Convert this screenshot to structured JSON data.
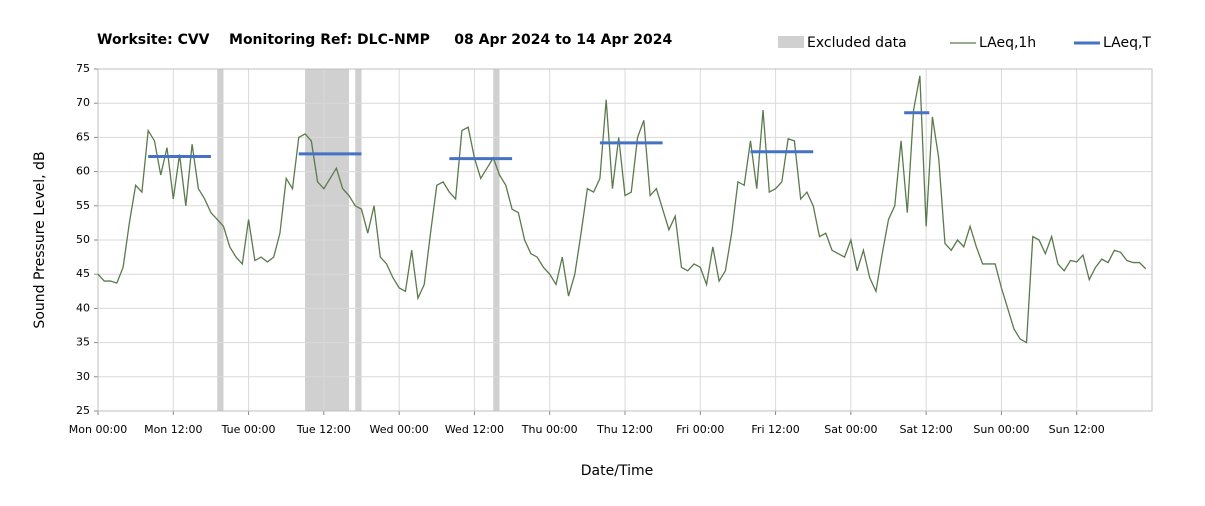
{
  "chart_data": {
    "type": "line",
    "title": "Worksite: CVV    Monitoring Ref: DLC-NMP     08 Apr 2024 to 14 Apr 2024",
    "y_label": "Sound Pressure Level, dB",
    "x_label": "Date/Time",
    "xlim": [
      0,
      168
    ],
    "xticks": [
      {
        "value": 0,
        "label": "Mon 00:00"
      },
      {
        "value": 12,
        "label": "Mon 12:00"
      },
      {
        "value": 24,
        "label": "Tue 00:00"
      },
      {
        "value": 36,
        "label": "Tue 12:00"
      },
      {
        "value": 48,
        "label": "Wed 00:00"
      },
      {
        "value": 60,
        "label": "Wed 12:00"
      },
      {
        "value": 72,
        "label": "Thu 00:00"
      },
      {
        "value": 84,
        "label": "Thu 12:00"
      },
      {
        "value": 96,
        "label": "Fri 00:00"
      },
      {
        "value": 108,
        "label": "Fri 12:00"
      },
      {
        "value": 120,
        "label": "Sat 00:00"
      },
      {
        "value": 132,
        "label": "Sat 12:00"
      },
      {
        "value": 144,
        "label": "Sun 00:00"
      },
      {
        "value": 156,
        "label": "Sun 12:00"
      }
    ],
    "ylim": [
      25,
      75
    ],
    "yticks": [
      25,
      30,
      35,
      40,
      45,
      50,
      55,
      60,
      65,
      70,
      75
    ],
    "grid": true,
    "excluded": {
      "name": "Excluded data",
      "color": "#d0d0d0",
      "periods": [
        [
          19,
          20
        ],
        [
          33,
          40
        ],
        [
          41,
          42
        ],
        [
          63,
          64
        ]
      ]
    },
    "x": [
      0,
      1,
      2,
      3,
      4,
      5,
      6,
      7,
      8,
      9,
      10,
      11,
      12,
      13,
      14,
      15,
      16,
      17,
      18,
      19,
      20,
      21,
      22,
      23,
      24,
      25,
      26,
      27,
      28,
      29,
      30,
      31,
      32,
      33,
      34,
      35,
      36,
      37,
      38,
      39,
      40,
      41,
      42,
      43,
      44,
      45,
      46,
      47,
      48,
      49,
      50,
      51,
      52,
      53,
      54,
      55,
      56,
      57,
      58,
      59,
      60,
      61,
      62,
      63,
      64,
      65,
      66,
      67,
      68,
      69,
      70,
      71,
      72,
      73,
      74,
      75,
      76,
      77,
      78,
      79,
      80,
      81,
      82,
      83,
      84,
      85,
      86,
      87,
      88,
      89,
      90,
      91,
      92,
      93,
      94,
      95,
      96,
      97,
      98,
      99,
      100,
      101,
      102,
      103,
      104,
      105,
      106,
      107,
      108,
      109,
      110,
      111,
      112,
      113,
      114,
      115,
      116,
      117,
      118,
      119,
      120,
      121,
      122,
      123,
      124,
      125,
      126,
      127,
      128,
      129,
      130,
      131,
      132,
      133,
      134,
      135,
      136,
      137,
      138,
      139,
      140,
      141,
      142,
      143,
      144,
      145,
      146,
      147,
      148,
      149,
      150,
      151,
      152,
      153,
      154,
      155,
      156,
      157,
      158,
      159,
      160,
      161,
      162,
      163,
      164,
      165,
      166,
      167
    ],
    "series": [
      {
        "name": "LAeq,1h",
        "color": "#5b7a4c",
        "values": [
          45,
          44,
          44,
          43.7,
          46,
          52.5,
          58,
          57,
          66,
          64.5,
          59.5,
          63.5,
          56,
          62.5,
          55,
          64,
          57.5,
          56,
          54,
          53,
          52,
          49,
          47.5,
          46.5,
          53,
          47,
          47.5,
          46.8,
          47.5,
          51,
          59,
          57.5,
          65,
          65.5,
          64.5,
          58.5,
          57.5,
          59,
          60.5,
          57.5,
          56.5,
          55,
          54.5,
          51,
          55,
          47.5,
          46.5,
          44.5,
          43,
          42.5,
          48.5,
          41.5,
          43.5,
          51,
          58,
          58.5,
          57,
          56,
          66,
          66.5,
          62,
          59,
          60.5,
          62,
          59.5,
          58,
          54.5,
          54,
          50,
          48,
          47.5,
          46,
          45,
          43.5,
          47.5,
          41.8,
          45,
          51,
          57.5,
          57,
          59,
          70.5,
          57.5,
          65,
          56.5,
          57,
          65,
          67.5,
          56.5,
          57.5,
          54.5,
          51.5,
          53.5,
          46,
          45.5,
          46.5,
          46,
          43.5,
          49,
          44,
          45.5,
          51,
          58.5,
          58,
          64.5,
          57.5,
          69,
          57,
          57.5,
          58.5,
          64.8,
          64.5,
          56,
          57,
          55,
          50.5,
          51,
          48.5,
          48,
          47.5,
          50,
          45.5,
          48.5,
          44.5,
          42.5,
          48,
          53,
          55,
          64.5,
          54,
          69,
          74,
          52,
          68,
          62,
          49.5,
          48.5,
          50,
          49,
          52,
          49,
          46.5,
          46.5,
          46.5,
          43,
          40,
          37,
          35.5,
          35,
          50.5,
          50,
          48,
          50.5,
          46.5,
          45.5,
          47,
          46.8,
          47.8,
          44.2,
          46,
          47.2,
          46.7,
          48.5,
          48.2,
          47,
          46.7,
          46.7,
          45.8
        ]
      }
    ],
    "laeq_t": {
      "name": "LAeq,T",
      "color": "#4472c4",
      "periods": [
        {
          "start": 8,
          "end": 18,
          "value": 62.2
        },
        {
          "start": 32,
          "end": 42,
          "value": 62.6
        },
        {
          "start": 56,
          "end": 66,
          "value": 61.9
        },
        {
          "start": 80,
          "end": 90,
          "value": 64.2
        },
        {
          "start": 104,
          "end": 114,
          "value": 62.9
        },
        {
          "start": 128.5,
          "end": 132.5,
          "value": 68.6
        }
      ]
    }
  }
}
